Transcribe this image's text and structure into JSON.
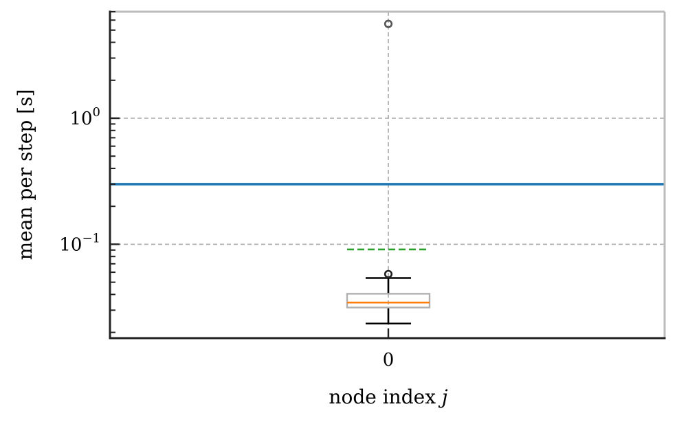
{
  "chart_data": {
    "type": "box",
    "title": "",
    "xlabel": "node index j",
    "xlabel_text": "node index ",
    "xlabel_var": "j",
    "ylabel": "mean per step [s]",
    "yscale": "log",
    "ylim": [
      0.018,
      7.0
    ],
    "categories": [
      "0"
    ],
    "y_ticks": [
      {
        "base": "10",
        "exp": "0",
        "value": 1.0
      },
      {
        "base": "10",
        "exp": "−1",
        "value": 0.1
      }
    ],
    "grid": true,
    "box": {
      "category": "0",
      "q1": 0.0315,
      "median": 0.0345,
      "q3": 0.0405,
      "whisker_low": 0.0235,
      "whisker_high": 0.054,
      "outliers": [
        5.6,
        0.058
      ]
    },
    "reference_lines": [
      {
        "value": 0.3,
        "color": "#1f77b4",
        "style": "solid"
      },
      {
        "value": 0.091,
        "color": "#2ca02c",
        "style": "dashed",
        "span": "box"
      }
    ],
    "colors": {
      "median": "#ff7f0e",
      "box": "#b0b0b0",
      "whisker": "#000000",
      "outlier_upper": "#555555",
      "outlier_lower": "#222222",
      "grid": "#a8a8a8",
      "spine_left_bottom": "#222222",
      "spine_top_right": "#bbbbbb"
    }
  }
}
